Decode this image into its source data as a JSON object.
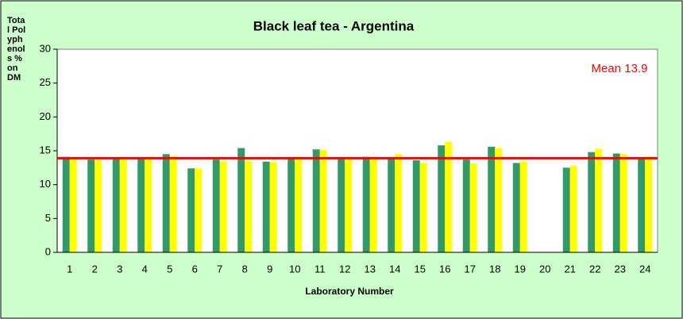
{
  "chart_data": {
    "type": "bar",
    "title": "Black leaf tea - Argentina",
    "x_label": "Laboratory Number",
    "y_label": "Total Polyphenols % on DM",
    "categories": [
      "1",
      "2",
      "3",
      "4",
      "5",
      "6",
      "7",
      "8",
      "9",
      "10",
      "11",
      "12",
      "13",
      "14",
      "15",
      "16",
      "17",
      "18",
      "19",
      "20",
      "21",
      "22",
      "23",
      "24"
    ],
    "series": [
      {
        "color": "#339966",
        "values": [
          14.1,
          13.7,
          14.0,
          13.8,
          14.5,
          12.4,
          13.7,
          15.4,
          13.4,
          14.0,
          15.2,
          13.8,
          14.1,
          14.0,
          13.6,
          15.8,
          13.7,
          15.6,
          13.2,
          null,
          12.5,
          14.8,
          14.6,
          14.0
        ]
      },
      {
        "color": "#ffff00",
        "values": [
          14.0,
          13.6,
          14.0,
          14.0,
          14.2,
          12.4,
          13.4,
          13.5,
          13.3,
          14.1,
          15.1,
          13.7,
          14.0,
          14.5,
          13.2,
          16.3,
          13.1,
          15.4,
          13.4,
          null,
          12.8,
          15.3,
          14.5,
          14.1
        ]
      }
    ],
    "reference_line": {
      "value": 13.9,
      "label": "Mean 13.9",
      "color": "#ff0000"
    },
    "ylim": [
      0,
      30
    ],
    "yticks": [
      0,
      5,
      10,
      15,
      20,
      25,
      30
    ],
    "grid": false
  }
}
